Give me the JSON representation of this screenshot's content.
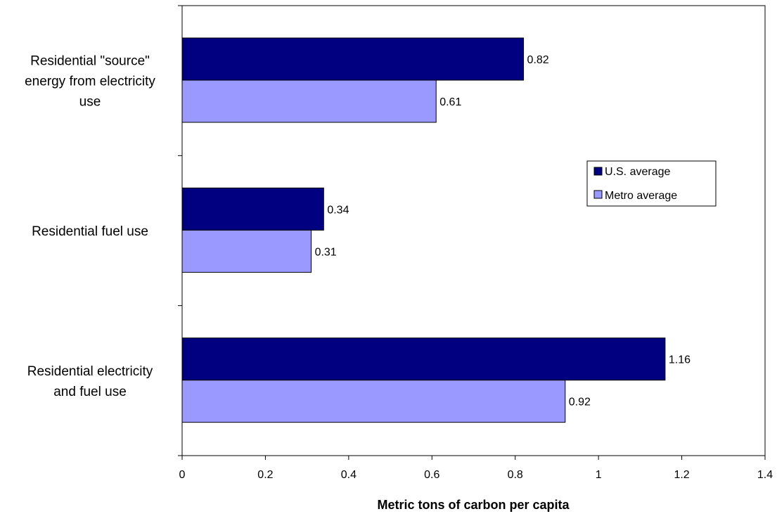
{
  "chart_data": {
    "type": "bar",
    "orientation": "horizontal",
    "categories": [
      [
        "Residential \"source\"",
        "energy from electricity",
        "use"
      ],
      [
        "Residential fuel use"
      ],
      [
        "Residential electricity",
        "and fuel use"
      ]
    ],
    "series": [
      {
        "name": "U.S. average",
        "values": [
          0.82,
          0.34,
          1.16
        ],
        "color": "#000080"
      },
      {
        "name": "Metro average",
        "values": [
          0.61,
          0.31,
          0.92
        ],
        "color": "#9999ff"
      }
    ],
    "value_labels": [
      [
        "0.82",
        "0.34",
        "1.16"
      ],
      [
        "0.61",
        "0.31",
        "0.92"
      ]
    ],
    "xlabel": "Metric tons of carbon per capita",
    "xlim": [
      0,
      1.4
    ],
    "xticks": [
      "0",
      "0.2",
      "0.4",
      "0.6",
      "0.8",
      "1",
      "1.2",
      "1.4"
    ],
    "grid": false,
    "legend": {
      "position": "right",
      "entries": [
        "U.S. average",
        "Metro average"
      ]
    }
  }
}
